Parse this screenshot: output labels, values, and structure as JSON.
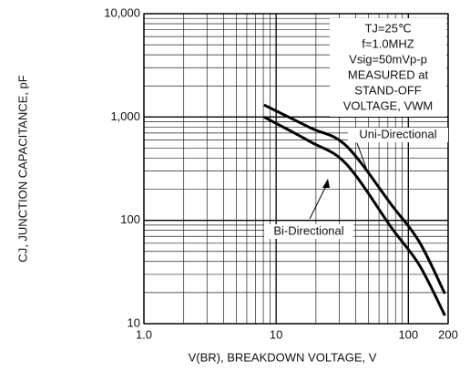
{
  "chart_data": {
    "type": "line",
    "ylabel": "CJ, JUNCTION CAPACITANCE, pF",
    "xlabel": "V(BR), BREAKDOWN VOLTAGE, V",
    "xscale": "log",
    "yscale": "log",
    "grid": true,
    "minor_grid": true,
    "xlim": [
      1,
      200
    ],
    "ylim": [
      10,
      10000
    ],
    "xticks": [
      {
        "value": 1,
        "label": "1.0"
      },
      10,
      100,
      200
    ],
    "yticks": [
      10,
      100,
      {
        "value": 1000,
        "label": "1,000"
      },
      {
        "value": 10000,
        "label": "10,000"
      }
    ],
    "series": [
      {
        "name": "Uni-Directional",
        "color": "#000000",
        "x": [
          8.1,
          18,
          34,
          75,
          121,
          189
        ],
        "values": [
          1310,
          790,
          525,
          140,
          62,
          19.5
        ]
      },
      {
        "name": "Bi-Directional",
        "color": "#000000",
        "x": [
          8.1,
          18,
          34,
          75,
          121,
          189
        ],
        "values": [
          1000,
          580,
          350,
          84,
          37,
          12
        ]
      }
    ],
    "annotation": [
      "TJ=25℃",
      "f=1.0MHZ",
      "Vsig=50mVp-p",
      "MEASURED at",
      "STAND-OFF",
      "VOLTAGE, VWM"
    ]
  }
}
